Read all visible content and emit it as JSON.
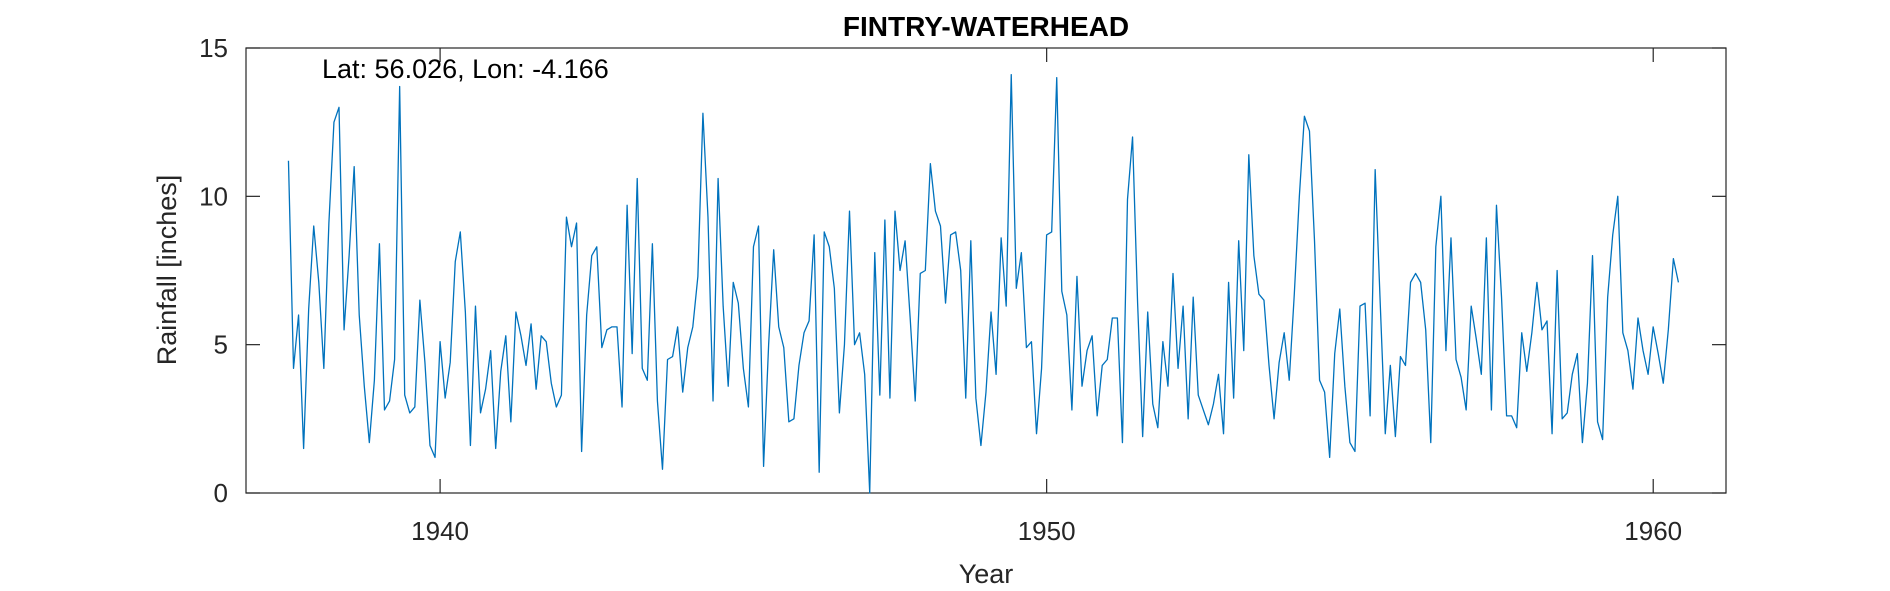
{
  "chart_data": {
    "type": "line",
    "title": "FINTRY-WATERHEAD",
    "xlabel": "Year",
    "ylabel": "Rainfall [inches]",
    "annotation": "Lat: 56.026, Lon: -4.166",
    "xlim": [
      1936.8,
      1961.2
    ],
    "ylim": [
      0,
      15
    ],
    "xticks": [
      1940,
      1950,
      1960
    ],
    "yticks": [
      0,
      5,
      10,
      15
    ],
    "grid": false,
    "line_color": "#0072BD",
    "series": [
      {
        "x_start": 1937.5,
        "x_step": 0.08333,
        "values": [
          11.2,
          4.2,
          6.0,
          1.5,
          6.2,
          9.0,
          7.1,
          4.2,
          9.1,
          12.5,
          13.0,
          5.5,
          8.0,
          11.0,
          6.0,
          3.6,
          1.7,
          3.8,
          8.4,
          2.8,
          3.1,
          4.5,
          13.7,
          3.3,
          2.7,
          2.9,
          6.5,
          4.4,
          1.6,
          1.2,
          5.1,
          3.2,
          4.4,
          7.8,
          8.8,
          6.1,
          1.6,
          6.3,
          2.7,
          3.5,
          4.8,
          1.5,
          4.1,
          5.3,
          2.4,
          6.1,
          5.3,
          4.3,
          5.7,
          3.5,
          5.3,
          5.1,
          3.7,
          2.9,
          3.3,
          9.3,
          8.3,
          9.1,
          1.4,
          6.0,
          8.0,
          8.3,
          4.9,
          5.5,
          5.6,
          5.6,
          2.9,
          9.7,
          4.7,
          10.6,
          4.2,
          3.8,
          8.4,
          3.1,
          0.8,
          4.5,
          4.6,
          5.6,
          3.4,
          4.9,
          5.6,
          7.3,
          12.8,
          9.3,
          3.1,
          10.6,
          6.3,
          3.6,
          7.1,
          6.4,
          4.2,
          2.9,
          8.3,
          9.0,
          0.9,
          5.0,
          8.2,
          5.6,
          4.9,
          2.4,
          2.5,
          4.3,
          5.4,
          5.8,
          8.7,
          0.7,
          8.8,
          8.3,
          6.9,
          2.7,
          5.0,
          9.5,
          5.0,
          5.4,
          4.0,
          0.0,
          8.1,
          3.3,
          9.2,
          3.2,
          9.5,
          7.5,
          8.5,
          5.9,
          3.1,
          7.4,
          7.5,
          11.1,
          9.5,
          9.0,
          6.4,
          8.7,
          8.8,
          7.5,
          3.2,
          8.5,
          3.2,
          1.6,
          3.4,
          6.1,
          4.0,
          8.6,
          6.3,
          14.1,
          6.9,
          8.1,
          4.9,
          5.1,
          2.0,
          4.2,
          8.7,
          8.8,
          14.0,
          6.8,
          6.0,
          2.8,
          7.3,
          3.6,
          4.8,
          5.3,
          2.6,
          4.3,
          4.5,
          5.9,
          5.9,
          1.7,
          9.9,
          12.0,
          6.4,
          1.9,
          6.1,
          3.0,
          2.2,
          5.1,
          3.6,
          7.4,
          4.2,
          6.3,
          2.5,
          6.6,
          3.3,
          2.8,
          2.3,
          3.0,
          4.0,
          2.0,
          7.1,
          3.2,
          8.5,
          4.8,
          11.4,
          8.0,
          6.7,
          6.5,
          4.3,
          2.5,
          4.4,
          5.4,
          3.8,
          6.7,
          10.0,
          12.7,
          12.2,
          8.5,
          3.8,
          3.4,
          1.2,
          4.7,
          6.2,
          3.6,
          1.7,
          1.4,
          6.3,
          6.4,
          2.6,
          10.9,
          6.4,
          2.0,
          4.3,
          1.9,
          4.6,
          4.3,
          7.1,
          7.4,
          7.1,
          5.5,
          1.7,
          8.3,
          10.0,
          4.8,
          8.6,
          4.5,
          3.9,
          2.8,
          6.3,
          5.2,
          4.0,
          8.6,
          2.8,
          9.7,
          6.6,
          2.6,
          2.6,
          2.2,
          5.4,
          4.1,
          5.4,
          7.1,
          5.5,
          5.8,
          2.0,
          7.5,
          2.5,
          2.7,
          4.0,
          4.7,
          1.7,
          3.7,
          8.0,
          2.4,
          1.8,
          6.6,
          8.7,
          10.0,
          5.4,
          4.8,
          3.5,
          5.9,
          4.8,
          4.0,
          5.6,
          4.7,
          3.7,
          5.5,
          7.9,
          7.1
        ]
      }
    ]
  }
}
